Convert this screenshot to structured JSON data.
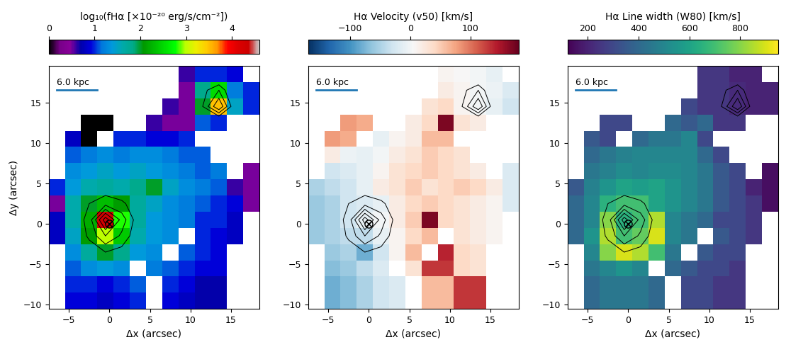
{
  "chart_data": [
    {
      "type": "heatmap",
      "colorbar_label": "log₁₀(fHα [×10⁻²⁰ erg/s/cm⁻²])",
      "color": "nipy_spectral",
      "colorbar_range": [
        0,
        4.6
      ],
      "colorbar_ticks": [
        0,
        1,
        2,
        3,
        4
      ],
      "xlabel": "Δx (arcsec)",
      "ylabel": "Δy (arcsec)",
      "xlim": [
        -7.5,
        18.5
      ],
      "ylim": [
        -10.5,
        19.5
      ],
      "xticks": [
        {
          "value": -5,
          "label": "−5"
        },
        0,
        5,
        10,
        15
      ],
      "yticks": [
        {
          "value": -10,
          "label": "−10"
        },
        {
          "value": -5,
          "label": "−5"
        },
        0,
        5,
        10,
        15
      ],
      "scalebar": {
        "label": "6.0 kpc",
        "length": 5.0
      },
      "nucleus": [
        0,
        0
      ],
      "contour_levels": [
        2.0,
        2.5,
        3.0,
        3.5,
        4.0
      ],
      "x_edges": [
        -7.5,
        -5.5,
        -3.5,
        -1.5,
        0.5,
        2.5,
        4.5,
        6.5,
        8.5,
        10.5,
        12.5,
        14.5,
        16.5,
        18.5
      ],
      "y_edges": [
        19.5,
        17.5,
        15.5,
        13.5,
        11.5,
        9.5,
        7.5,
        5.5,
        3.5,
        1.5,
        -0.5,
        -2.5,
        -4.5,
        -6.5,
        -8.5,
        -10.5
      ],
      "cells": [
        [
          null,
          null,
          null,
          null,
          null,
          null,
          null,
          null,
          0.6,
          1.0,
          1.0,
          0.9,
          null
        ],
        [
          null,
          null,
          null,
          null,
          null,
          null,
          null,
          null,
          0.5,
          1.8,
          2.5,
          1.2,
          1.0
        ],
        [
          null,
          null,
          null,
          null,
          null,
          null,
          null,
          0.6,
          0.5,
          2.0,
          3.5,
          1.5,
          1.0
        ],
        [
          null,
          null,
          0.0,
          0.0,
          null,
          null,
          0.6,
          0.5,
          0.5,
          1.1,
          1.0,
          null,
          null
        ],
        [
          null,
          0.8,
          0.0,
          null,
          1.0,
          1.0,
          0.9,
          0.9,
          1.0,
          null,
          null,
          null,
          null
        ],
        [
          null,
          1.1,
          1.2,
          1.3,
          1.2,
          1.3,
          1.3,
          1.2,
          1.1,
          1.1,
          null,
          null,
          null
        ],
        [
          null,
          1.3,
          1.4,
          1.5,
          1.4,
          1.5,
          1.4,
          1.3,
          1.2,
          1.1,
          1.2,
          null,
          0.5
        ],
        [
          1.0,
          1.4,
          1.6,
          1.7,
          1.6,
          1.8,
          2.0,
          1.5,
          1.3,
          1.2,
          1.1,
          0.6,
          0.5
        ],
        [
          0.5,
          1.6,
          2.0,
          2.3,
          2.1,
          1.7,
          1.5,
          1.3,
          1.2,
          1.1,
          1.0,
          0.9,
          0.5
        ],
        [
          0.8,
          1.6,
          2.2,
          4.3,
          2.8,
          1.7,
          1.4,
          1.3,
          1.2,
          1.0,
          1.0,
          0.8,
          null
        ],
        [
          0.8,
          1.5,
          2.1,
          3.0,
          2.4,
          1.6,
          1.4,
          1.3,
          null,
          1.0,
          0.9,
          0.8,
          null
        ],
        [
          null,
          1.3,
          1.7,
          2.0,
          1.8,
          1.4,
          1.3,
          null,
          1.1,
          1.0,
          0.9,
          null,
          null
        ],
        [
          null,
          1.1,
          1.3,
          1.4,
          1.3,
          null,
          1.2,
          1.1,
          1.0,
          0.9,
          0.9,
          null,
          null
        ],
        [
          null,
          1.0,
          1.0,
          0.9,
          1.0,
          1.1,
          null,
          1.0,
          0.9,
          0.7,
          0.7,
          null,
          null
        ],
        [
          null,
          0.9,
          0.9,
          0.8,
          0.9,
          1.0,
          null,
          0.9,
          0.8,
          0.7,
          0.7,
          null,
          null
        ]
      ]
    },
    {
      "type": "heatmap",
      "colorbar_label": "Hα Velocity (v50) [km/s]",
      "color": "RdBu_r",
      "colorbar_range": [
        -170,
        180
      ],
      "colorbar_ticks": [
        {
          "value": -100,
          "label": "−100"
        },
        0,
        100
      ],
      "xlabel": "Δx (arcsec)",
      "xlim": [
        -7.5,
        18.5
      ],
      "ylim": [
        -10.5,
        19.5
      ],
      "xticks": [
        {
          "value": -5,
          "label": "−5"
        },
        0,
        5,
        10,
        15
      ],
      "yticks": [
        {
          "value": -10,
          "label": "−10"
        },
        {
          "value": -5,
          "label": "−5"
        },
        0,
        5,
        10,
        15
      ],
      "scalebar": {
        "label": "6.0 kpc",
        "length": 5.0
      },
      "nucleus": [
        0,
        0
      ],
      "contour_levels": [
        2.0,
        2.5,
        3.0,
        3.5,
        4.0
      ],
      "x_edges": [
        -7.5,
        -5.5,
        -3.5,
        -1.5,
        0.5,
        2.5,
        4.5,
        6.5,
        8.5,
        10.5,
        12.5,
        14.5,
        16.5,
        18.5
      ],
      "y_edges": [
        19.5,
        17.5,
        15.5,
        13.5,
        11.5,
        9.5,
        7.5,
        5.5,
        3.5,
        1.5,
        -0.5,
        -2.5,
        -4.5,
        -6.5,
        -8.5,
        -10.5
      ],
      "cells": [
        [
          null,
          null,
          null,
          null,
          null,
          null,
          null,
          null,
          10,
          5,
          0,
          -10,
          null
        ],
        [
          null,
          null,
          null,
          null,
          null,
          null,
          null,
          null,
          20,
          10,
          0,
          -5,
          -20
        ],
        [
          null,
          null,
          null,
          null,
          null,
          null,
          null,
          30,
          40,
          10,
          0,
          -10,
          -30
        ],
        [
          null,
          null,
          80,
          70,
          null,
          null,
          20,
          40,
          170,
          30,
          20,
          null,
          null
        ],
        [
          null,
          80,
          70,
          null,
          -10,
          10,
          20,
          60,
          60,
          null,
          null,
          null,
          null
        ],
        [
          null,
          20,
          -5,
          -10,
          0,
          20,
          30,
          50,
          40,
          30,
          null,
          null,
          null
        ],
        [
          null,
          -30,
          -20,
          -10,
          10,
          30,
          40,
          50,
          40,
          30,
          20,
          null,
          -20
        ],
        [
          -50,
          -40,
          -30,
          -10,
          20,
          30,
          50,
          30,
          40,
          50,
          40,
          20,
          -20
        ],
        [
          -60,
          -50,
          -30,
          -20,
          -10,
          20,
          40,
          50,
          40,
          30,
          20,
          10,
          -20
        ],
        [
          -60,
          -50,
          -30,
          -10,
          0,
          20,
          50,
          170,
          40,
          30,
          20,
          10,
          null
        ],
        [
          -60,
          -50,
          -40,
          -40,
          -10,
          10,
          40,
          60,
          null,
          30,
          20,
          10,
          null
        ],
        [
          null,
          -60,
          -50,
          -80,
          -30,
          10,
          60,
          null,
          140,
          40,
          30,
          null,
          null
        ],
        [
          null,
          -70,
          -60,
          -40,
          -20,
          null,
          30,
          130,
          130,
          40,
          30,
          null,
          null
        ],
        [
          null,
          -80,
          -70,
          -50,
          -30,
          -20,
          null,
          60,
          60,
          130,
          130,
          null,
          null
        ],
        [
          null,
          -80,
          -70,
          -50,
          -30,
          -20,
          null,
          60,
          60,
          130,
          130,
          null,
          null
        ]
      ]
    },
    {
      "type": "heatmap",
      "colorbar_label": "Hα Line width (W80) [km/s]",
      "color": "viridis",
      "colorbar_range": [
        120,
        950
      ],
      "colorbar_ticks": [
        200,
        400,
        600,
        800
      ],
      "xlabel": "Δx (arcsec)",
      "xlim": [
        -7.5,
        18.5
      ],
      "ylim": [
        -10.5,
        19.5
      ],
      "xticks": [
        {
          "value": -5,
          "label": "−5"
        },
        0,
        5,
        10,
        15
      ],
      "yticks": [
        {
          "value": -10,
          "label": "−10"
        },
        {
          "value": -5,
          "label": "−5"
        },
        0,
        5,
        10,
        15
      ],
      "scalebar": {
        "label": "6.0 kpc",
        "length": 5.0
      },
      "nucleus": [
        0,
        0
      ],
      "contour_levels": [
        2.0,
        2.5,
        3.0,
        3.5,
        4.0
      ],
      "x_edges": [
        -7.5,
        -5.5,
        -3.5,
        -1.5,
        0.5,
        2.5,
        4.5,
        6.5,
        8.5,
        10.5,
        12.5,
        14.5,
        16.5,
        18.5
      ],
      "y_edges": [
        19.5,
        17.5,
        15.5,
        13.5,
        11.5,
        9.5,
        7.5,
        5.5,
        3.5,
        1.5,
        -0.5,
        -2.5,
        -4.5,
        -6.5,
        -8.5,
        -10.5
      ],
      "cells": [
        [
          null,
          null,
          null,
          null,
          null,
          null,
          null,
          null,
          250,
          250,
          200,
          200,
          null
        ],
        [
          null,
          null,
          null,
          null,
          null,
          null,
          null,
          null,
          250,
          250,
          220,
          200,
          200
        ],
        [
          null,
          null,
          null,
          null,
          null,
          null,
          null,
          300,
          250,
          250,
          220,
          200,
          200
        ],
        [
          null,
          null,
          300,
          300,
          null,
          null,
          400,
          350,
          400,
          250,
          250,
          null,
          null
        ],
        [
          null,
          350,
          300,
          null,
          400,
          450,
          450,
          500,
          300,
          null,
          null,
          null,
          null
        ],
        [
          null,
          400,
          450,
          480,
          500,
          500,
          500,
          500,
          400,
          300,
          null,
          null,
          null
        ],
        [
          null,
          450,
          480,
          520,
          500,
          520,
          520,
          500,
          450,
          350,
          300,
          null,
          150
        ],
        [
          350,
          480,
          550,
          600,
          580,
          600,
          550,
          500,
          450,
          350,
          300,
          200,
          150
        ],
        [
          400,
          500,
          650,
          700,
          700,
          600,
          550,
          500,
          450,
          350,
          300,
          250,
          150
        ],
        [
          400,
          500,
          800,
          650,
          700,
          850,
          500,
          450,
          400,
          300,
          300,
          250,
          null
        ],
        [
          400,
          550,
          850,
          700,
          750,
          900,
          500,
          450,
          null,
          350,
          300,
          250,
          null
        ],
        [
          null,
          500,
          800,
          900,
          850,
          700,
          450,
          null,
          350,
          300,
          300,
          null,
          null
        ],
        [
          null,
          450,
          500,
          550,
          500,
          null,
          400,
          350,
          300,
          300,
          250,
          null,
          null
        ],
        [
          null,
          400,
          450,
          450,
          450,
          400,
          null,
          300,
          300,
          250,
          250,
          null,
          null
        ],
        [
          null,
          400,
          450,
          450,
          450,
          400,
          null,
          300,
          300,
          250,
          250,
          null,
          null
        ]
      ]
    }
  ]
}
